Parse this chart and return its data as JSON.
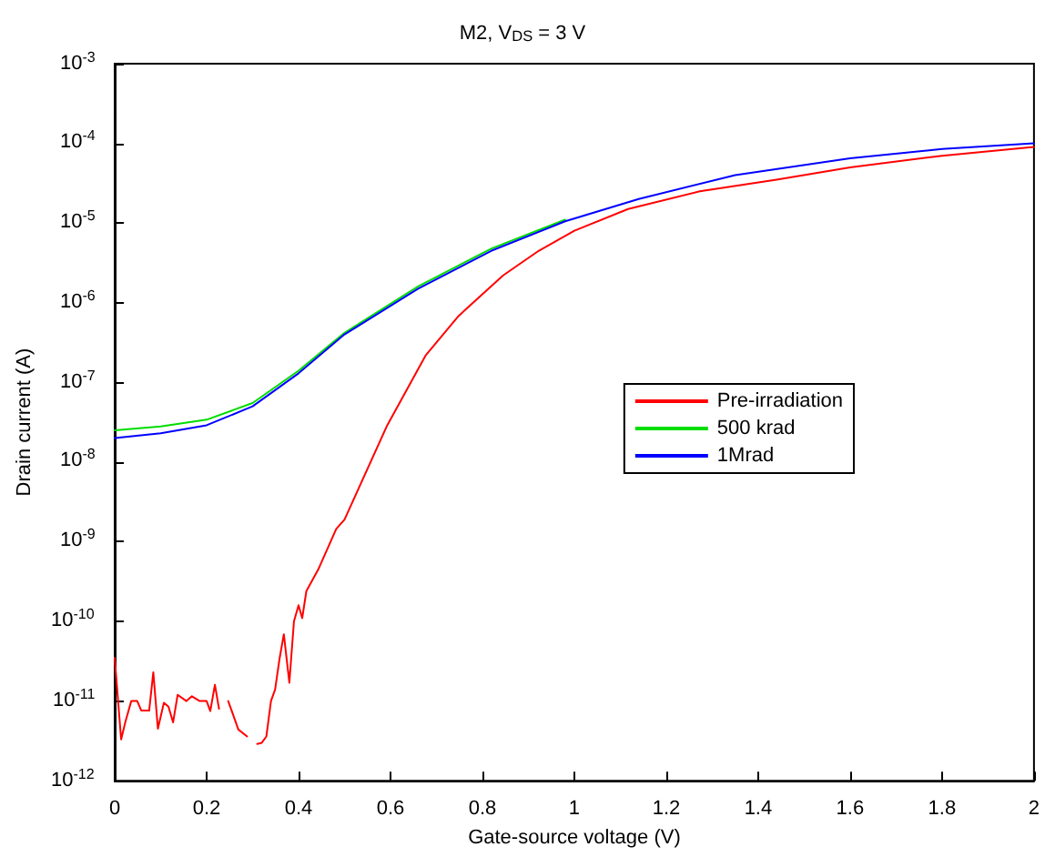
{
  "chart_data": {
    "type": "line",
    "title": "M2, V$_{DS}$ = 3 V",
    "xlabel": "Gate-source voltage (V)",
    "ylabel": "Drain current (A)",
    "log": "y",
    "grid": false,
    "legend": "right",
    "marker": "none",
    "line_style": "solid",
    "xlim": [
      0,
      2
    ],
    "xticks": [
      0,
      0.2,
      0.4,
      0.6,
      0.8,
      1,
      1.2,
      1.4,
      1.6,
      1.8,
      2
    ],
    "ylim": [
      1e-12,
      0.001
    ],
    "yticks": [
      {
        "value": 1e-12,
        "label": "10$^{-12}$"
      },
      {
        "value": 1e-11,
        "label": "10$^{-11}$"
      },
      {
        "value": 1e-10,
        "label": "10$^{-10}$"
      },
      {
        "value": 1e-09,
        "label": "10$^{-9}$"
      },
      {
        "value": 1e-08,
        "label": "10$^{-8}$"
      },
      {
        "value": 1e-07,
        "label": "10$^{-7}$"
      },
      {
        "value": 1e-06,
        "label": "10$^{-6}$"
      },
      {
        "value": 1e-05,
        "label": "10$^{-5}$"
      },
      {
        "value": 0.0001,
        "label": "10$^{-4}$"
      },
      {
        "value": 0.001,
        "label": "10$^{-3}$"
      }
    ],
    "series": [
      {
        "name": "Pre-irradiation",
        "color": "#ff0000",
        "x": [
          0,
          0.014,
          0.023,
          0.036,
          0.049,
          0.058,
          0.075,
          0.084,
          0.094,
          0.107,
          0.117,
          0.127,
          0.137,
          0.156,
          0.168,
          0.185,
          0.2,
          0.208,
          0.218,
          0.227,
          0.235,
          0.247,
          0.269,
          0.288,
          0.3,
          0.31,
          0.32,
          0.33,
          0.34,
          0.349,
          0.359,
          0.368,
          0.38,
          0.39,
          0.4,
          0.408,
          0.417,
          0.443,
          0.482,
          0.5,
          0.593,
          0.677,
          0.748,
          0.845,
          0.923,
          1.0,
          1.117,
          1.273,
          1.44,
          1.6,
          1.8,
          2.0
        ],
        "values": [
          3.5e-11,
          3.3e-12,
          5.4e-12,
          1e-11,
          1e-11,
          7.6e-12,
          7.6e-12,
          2.3e-11,
          4.5e-12,
          9.5e-12,
          8.5e-12,
          5.4e-12,
          1.2e-11,
          1e-11,
          1.15e-11,
          1e-11,
          1e-11,
          7.5e-12,
          1.6e-11,
          8e-12,
          null,
          1e-11,
          4.4e-12,
          3.6e-12,
          null,
          2.9e-12,
          3e-12,
          3.6e-12,
          1e-11,
          1.4e-11,
          3.5e-11,
          6.9e-11,
          1.7e-11,
          1e-10,
          1.6e-10,
          1.1e-10,
          2.4e-10,
          4.5e-10,
          1.45e-09,
          1.9e-09,
          2.9e-08,
          2.2e-07,
          6.8e-07,
          2.2e-06,
          4.5e-06,
          8e-06,
          1.5e-05,
          2.5e-05,
          3.5e-05,
          5e-05,
          7e-05,
          9e-05
        ]
      },
      {
        "name": "500 krad",
        "color": "#00dd00",
        "x": [
          0,
          0.1,
          0.2,
          0.3,
          0.4,
          0.5,
          0.66,
          0.82,
          0.98
        ],
        "values": [
          2.5e-08,
          2.8e-08,
          3.4e-08,
          5.5e-08,
          1.4e-07,
          4.2e-07,
          1.6e-06,
          4.8e-06,
          1.1e-05
        ]
      },
      {
        "name": "1Mrad",
        "color": "#0000ff",
        "x": [
          0,
          0.1,
          0.2,
          0.3,
          0.4,
          0.5,
          0.66,
          0.82,
          0.98,
          1.14,
          1.35,
          1.6,
          1.8,
          2.0
        ],
        "values": [
          2e-08,
          2.3e-08,
          2.9e-08,
          5e-08,
          1.3e-07,
          4e-07,
          1.5e-06,
          4.5e-06,
          1.05e-05,
          2e-05,
          4e-05,
          6.5e-05,
          8.5e-05,
          0.0001
        ]
      }
    ]
  }
}
